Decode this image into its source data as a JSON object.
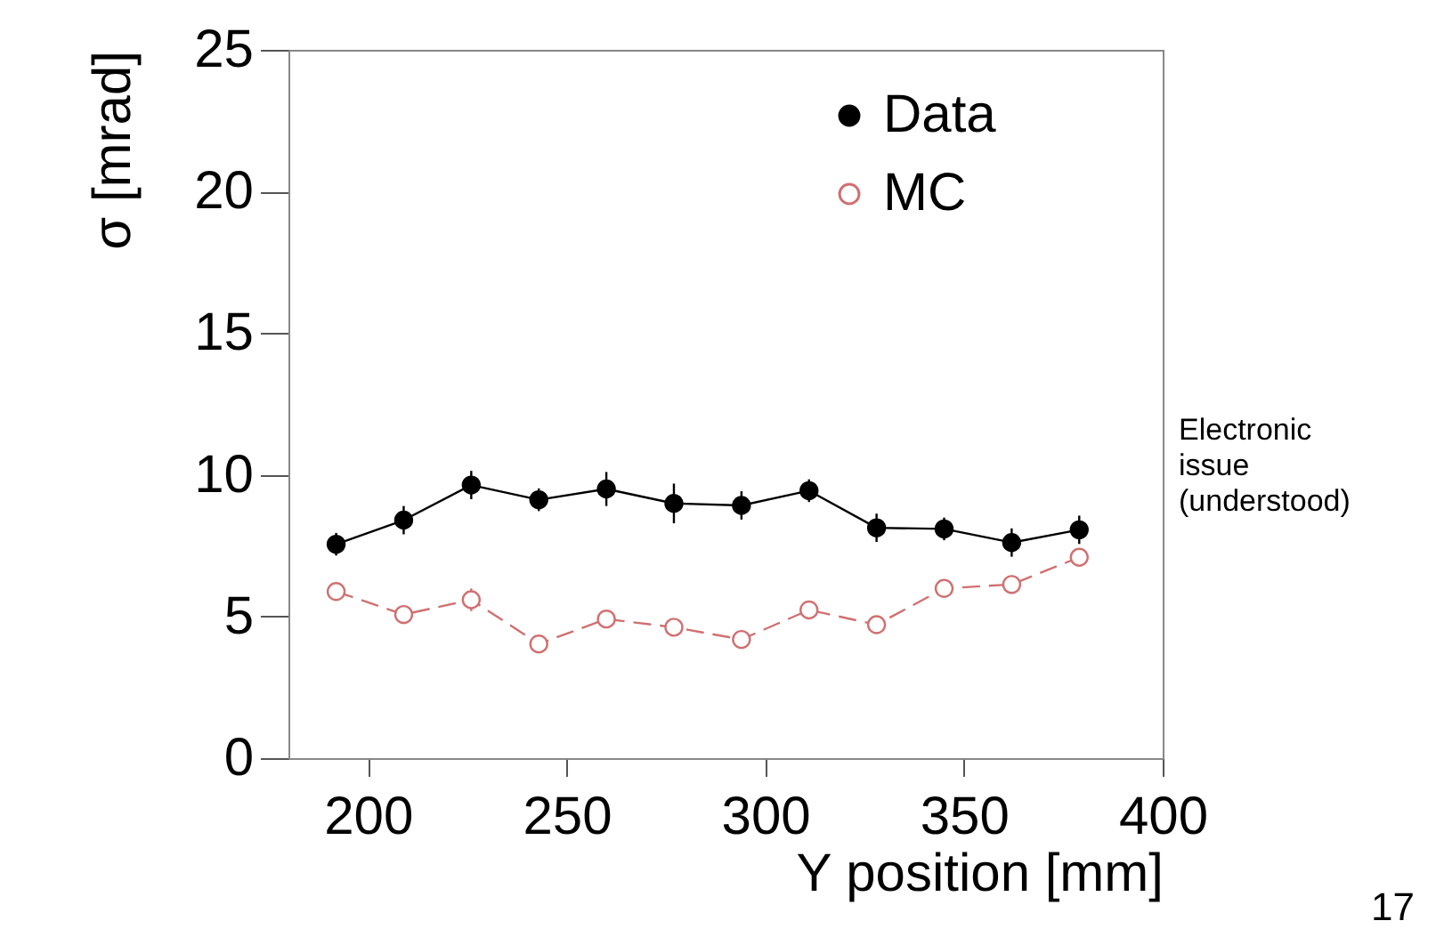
{
  "chart_data": {
    "type": "line",
    "xlabel": "Y position [mm]",
    "ylabel": "σ [mrad]",
    "x": [
      192,
      209,
      226,
      243,
      260,
      277,
      294,
      311,
      328,
      345,
      362,
      379
    ],
    "series": [
      {
        "name": "Data",
        "color": "#000000",
        "line_style": "solid",
        "values": [
          7.55,
          8.4,
          9.64,
          9.12,
          9.5,
          8.99,
          8.92,
          9.44,
          8.13,
          8.09,
          7.61,
          8.06
        ],
        "errors": [
          0.4,
          0.5,
          0.5,
          0.4,
          0.6,
          0.7,
          0.5,
          0.4,
          0.5,
          0.4,
          0.5,
          0.5
        ]
      },
      {
        "name": "MC",
        "color": "#d07070",
        "line_style": "dashed",
        "values": [
          5.88,
          5.07,
          5.59,
          4.03,
          4.91,
          4.62,
          4.19,
          5.23,
          4.71,
          5.99,
          6.13,
          7.09
        ],
        "errors": [
          0.3,
          0.3,
          0.4,
          0.3,
          0.3,
          0.3,
          0.3,
          0.3,
          0.3,
          0.3,
          0.3,
          0.3
        ]
      }
    ],
    "xlim": [
      180,
      400
    ],
    "xticks": [
      200,
      250,
      300,
      350,
      400
    ],
    "ylim": [
      0,
      25
    ],
    "yticks": [
      0,
      5,
      10,
      15,
      20,
      25
    ],
    "grid": false,
    "legend": "top right",
    "marker": "circle",
    "annotations": [
      "Electronic issue (understood)",
      "17"
    ]
  }
}
